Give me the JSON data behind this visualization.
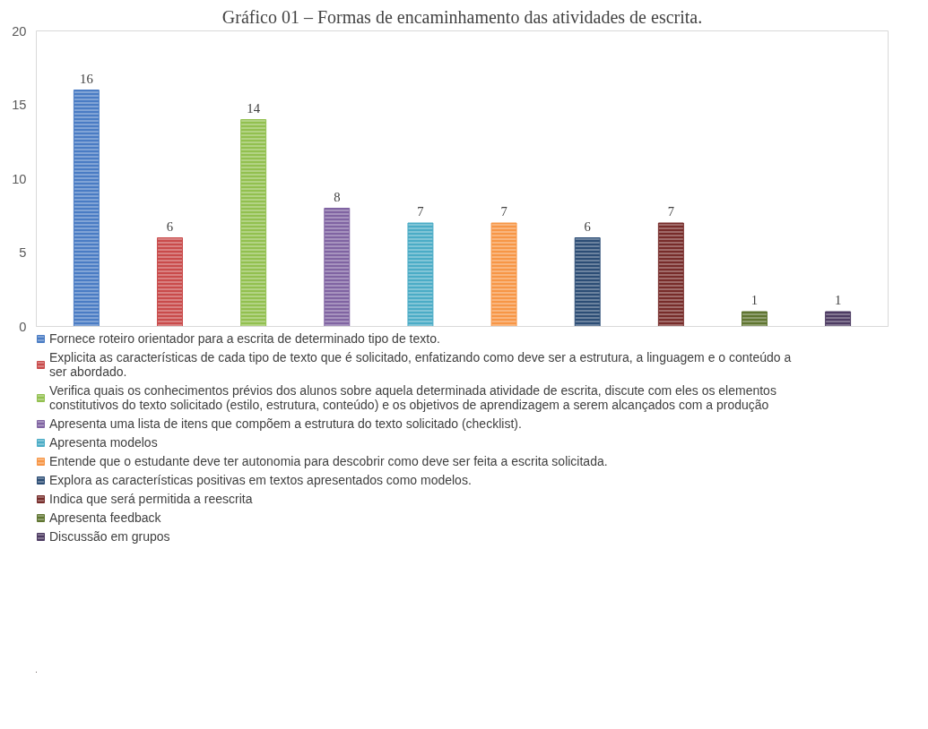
{
  "chart_data": {
    "type": "bar",
    "title": "Gráfico 01 – Formas de encaminhamento das atividades de escrita.",
    "categories": [
      null,
      null,
      null,
      null,
      null,
      null,
      null,
      null,
      null,
      null
    ],
    "series": [
      {
        "name": "Fornece roteiro orientador para a escrita de determinado tipo de texto.",
        "color": "#4a7cc4",
        "values": [
          16,
          null,
          null,
          null,
          null,
          null,
          null,
          null,
          null,
          null
        ]
      },
      {
        "name": "Explicita as características de cada tipo de texto que é solicitado, enfatizando como deve ser a estrutura, a linguagem e o conteúdo a ser abordado.",
        "color": "#c94b4b",
        "values": [
          null,
          6,
          null,
          null,
          null,
          null,
          null,
          null,
          null,
          null
        ]
      },
      {
        "name": "Verifica quais os conhecimentos prévios dos alunos sobre aquela determinada atividade de escrita, discute com eles os elementos constitutivos do texto solicitado (estilo, estrutura, conteúdo) e os objetivos de aprendizagem a serem alcançados com a produção",
        "color": "#92c04f",
        "values": [
          null,
          null,
          14,
          null,
          null,
          null,
          null,
          null,
          null,
          null
        ]
      },
      {
        "name": "Apresenta uma lista de itens que compõem a estrutura do texto solicitado (checklist).",
        "color": "#8064a2",
        "values": [
          null,
          null,
          null,
          8,
          null,
          null,
          null,
          null,
          null,
          null
        ]
      },
      {
        "name": "Apresenta modelos",
        "color": "#4bacc6",
        "values": [
          null,
          null,
          null,
          null,
          7,
          null,
          null,
          null,
          null,
          null
        ]
      },
      {
        "name": "Entende que o estudante deve ter autonomia para descobrir como deve ser feita a escrita solicitada.",
        "color": "#f79646",
        "values": [
          null,
          null,
          null,
          null,
          null,
          7,
          null,
          null,
          null,
          null
        ]
      },
      {
        "name": "Explora as características positivas em textos apresentados como modelos.",
        "color": "#2c4d75",
        "values": [
          null,
          null,
          null,
          null,
          null,
          null,
          6,
          null,
          null,
          null
        ]
      },
      {
        "name": "Indica que será permitida a reescrita",
        "color": "#772c2a",
        "values": [
          null,
          null,
          null,
          null,
          null,
          null,
          null,
          7,
          null,
          null
        ]
      },
      {
        "name": "Apresenta feedback",
        "color": "#5f7530",
        "values": [
          null,
          null,
          null,
          null,
          null,
          null,
          null,
          null,
          1,
          null
        ]
      },
      {
        "name": "Discussão em grupos",
        "color": "#4d3b62",
        "values": [
          null,
          null,
          null,
          null,
          null,
          null,
          null,
          null,
          null,
          1
        ]
      }
    ],
    "ylim": [
      0,
      20
    ],
    "yticks": [
      0,
      5,
      10,
      15,
      20
    ],
    "grid": false,
    "data_labels": true,
    "legend": "bottom"
  }
}
